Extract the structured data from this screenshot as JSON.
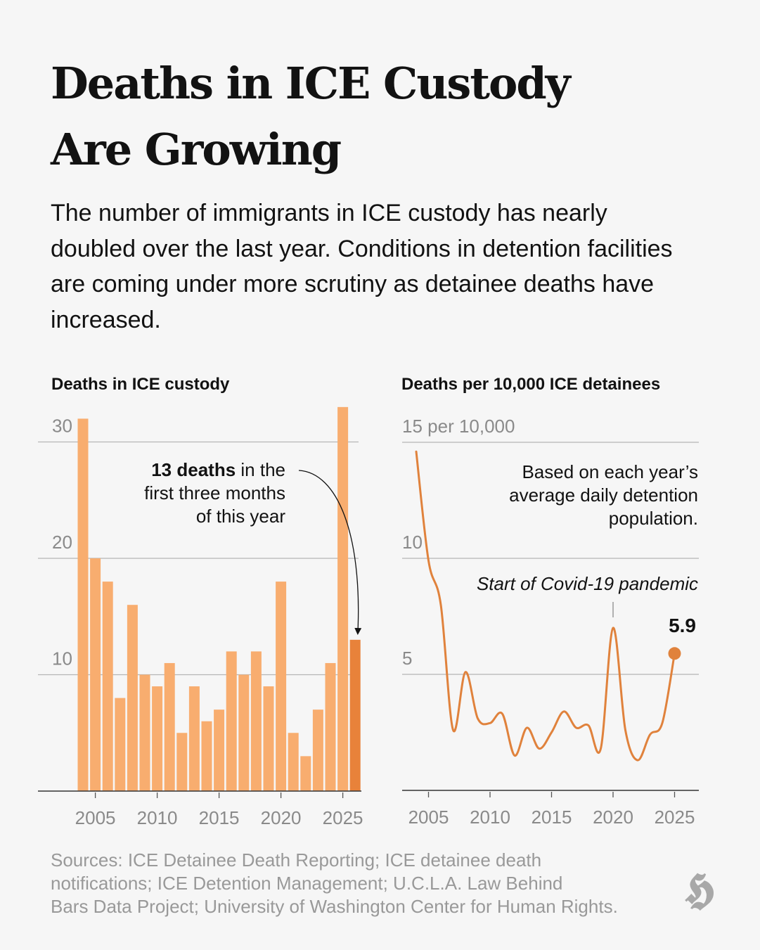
{
  "header": {
    "title_line1": "Deaths in ICE Custody",
    "title_line2": "Are Growing",
    "subtitle": "The number of immigrants in ICE custody has nearly doubled over the last year. Conditions in detention facilities are coming under more scrutiny as detainee deaths have increased."
  },
  "colors": {
    "bar": "#f8ad6f",
    "bar_highlight": "#e8823a",
    "line": "#e0823c",
    "grid": "#b5b5b5",
    "axis": "#333333",
    "background": "#f6f6f6"
  },
  "chart_data": [
    {
      "type": "bar",
      "title": "Deaths in ICE custody",
      "xlabel": "",
      "ylabel": "",
      "categories": [
        2004,
        2005,
        2006,
        2007,
        2008,
        2009,
        2010,
        2011,
        2012,
        2013,
        2014,
        2015,
        2016,
        2017,
        2018,
        2019,
        2020,
        2021,
        2022,
        2023,
        2024,
        2025,
        2026
      ],
      "values": [
        32,
        20,
        18,
        8,
        16,
        10,
        9,
        11,
        5,
        9,
        6,
        7,
        12,
        10,
        12,
        9,
        18,
        5,
        3,
        7,
        11,
        33,
        13
      ],
      "highlight_index": 22,
      "ylim": [
        0,
        33
      ],
      "yticks": [
        10,
        20,
        30
      ],
      "ytick_labels": [
        "10",
        "20",
        "30"
      ],
      "xticks": [
        2005,
        2010,
        2015,
        2020,
        2025
      ],
      "xtick_labels": [
        "2005",
        "2010",
        "2015",
        "2020",
        "2025"
      ],
      "grid": true,
      "annotation": {
        "bold": "13 deaths",
        "line1_rest": " in the",
        "line2": "first three months",
        "line3": "of this year",
        "points_to": 2026
      }
    },
    {
      "type": "line",
      "title": "Deaths per 10,000 ICE detainees",
      "xlabel": "",
      "ylabel": "",
      "x": [
        2004,
        2005,
        2006,
        2007,
        2008,
        2009,
        2010,
        2011,
        2012,
        2013,
        2014,
        2015,
        2016,
        2017,
        2018,
        2019,
        2020,
        2021,
        2022,
        2023,
        2024,
        2025
      ],
      "values": [
        14.6,
        9.9,
        8.0,
        2.6,
        5.1,
        3.1,
        2.9,
        3.3,
        1.5,
        2.7,
        1.8,
        2.5,
        3.4,
        2.7,
        2.8,
        1.8,
        7.0,
        2.6,
        1.3,
        2.4,
        2.9,
        5.9
      ],
      "ylim": [
        0,
        15
      ],
      "yticks": [
        5,
        10,
        15
      ],
      "ytick_labels": [
        "5",
        "10",
        "15 per 10,000"
      ],
      "xticks": [
        2005,
        2010,
        2015,
        2020,
        2025
      ],
      "xtick_labels": [
        "2005",
        "2010",
        "2015",
        "2020",
        "2025"
      ],
      "grid": true,
      "last_value_label": "5.9",
      "note": [
        "Based on each year’s",
        "average daily detention",
        "population."
      ],
      "event_annotation": {
        "label": "Start of Covid-19 pandemic",
        "x": 2020
      }
    }
  ],
  "footer": {
    "sources_line1": "Sources: ICE Detainee Death Reporting; ICE detainee death",
    "sources_line2": "notifications; ICE Detention Management; U.C.L.A. Law Behind",
    "sources_line3": "Bars Data Project; University of Washington Center for Human Rights.",
    "logo_glyph": "𝕳",
    "logo_name": "nyt-logo"
  }
}
